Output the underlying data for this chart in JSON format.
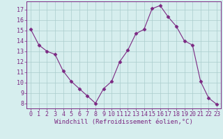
{
  "x": [
    0,
    1,
    2,
    3,
    4,
    5,
    6,
    7,
    8,
    9,
    10,
    11,
    12,
    13,
    14,
    15,
    16,
    17,
    18,
    19,
    20,
    21,
    22,
    23
  ],
  "y": [
    15.1,
    13.6,
    13.0,
    12.7,
    11.1,
    10.1,
    9.4,
    8.7,
    8.0,
    9.4,
    10.1,
    12.0,
    13.1,
    14.7,
    15.1,
    17.1,
    17.4,
    16.3,
    15.4,
    14.0,
    13.6,
    10.1,
    8.5,
    7.9
  ],
  "line_color": "#7B2882",
  "marker": "D",
  "marker_size": 2.5,
  "bg_color": "#d6eeee",
  "grid_color": "#aacccc",
  "xlabel": "Windchill (Refroidissement éolien,°C)",
  "xlabel_color": "#7B2882",
  "tick_color": "#7B2882",
  "ylim": [
    7.5,
    17.8
  ],
  "xlim": [
    -0.5,
    23.5
  ],
  "yticks": [
    8,
    9,
    10,
    11,
    12,
    13,
    14,
    15,
    16,
    17
  ],
  "xticks": [
    0,
    1,
    2,
    3,
    4,
    5,
    6,
    7,
    8,
    9,
    10,
    11,
    12,
    13,
    14,
    15,
    16,
    17,
    18,
    19,
    20,
    21,
    22,
    23
  ],
  "label_fontsize": 6.5,
  "tick_fontsize": 6.0
}
